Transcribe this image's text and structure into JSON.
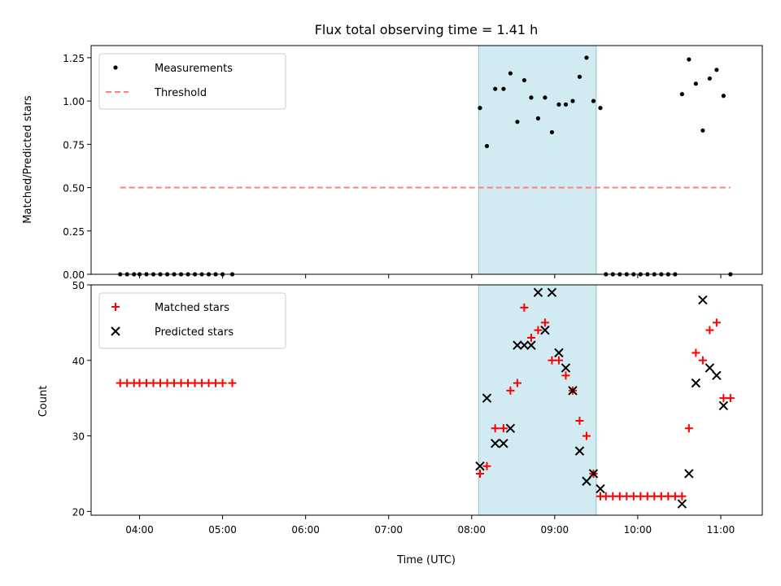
{
  "chart_data": [
    {
      "type": "scatter",
      "title": "Flux total observing time = 1.41 h",
      "xlabel": "",
      "ylabel": "Matched/Predicted stars",
      "xlim": [
        "03:25",
        "11:30"
      ],
      "ylim": [
        0,
        1.32
      ],
      "x_ticks": [
        "04:00",
        "05:00",
        "06:00",
        "07:00",
        "08:00",
        "09:00",
        "10:00",
        "11:00"
      ],
      "y_ticks": [
        "0.00",
        "0.25",
        "0.50",
        "0.75",
        "1.00",
        "1.25"
      ],
      "shaded_interval": [
        "08:05",
        "09:30"
      ],
      "shade_color": "#add8e6",
      "legend_position": "upper-left",
      "series": [
        {
          "name": "Measurements",
          "marker": "dot",
          "color": "#000000",
          "points": [
            [
              "03:46",
              0
            ],
            [
              "03:51",
              0
            ],
            [
              "03:56",
              0
            ],
            [
              "04:00",
              0
            ],
            [
              "04:05",
              0
            ],
            [
              "04:10",
              0
            ],
            [
              "04:15",
              0
            ],
            [
              "04:20",
              0
            ],
            [
              "04:25",
              0
            ],
            [
              "04:30",
              0
            ],
            [
              "04:35",
              0
            ],
            [
              "04:40",
              0
            ],
            [
              "04:45",
              0
            ],
            [
              "04:50",
              0
            ],
            [
              "04:55",
              0
            ],
            [
              "05:00",
              0
            ],
            [
              "05:07",
              0
            ],
            [
              "08:06",
              0.96
            ],
            [
              "08:11",
              0.74
            ],
            [
              "08:17",
              1.07
            ],
            [
              "08:23",
              1.07
            ],
            [
              "08:28",
              1.16
            ],
            [
              "08:33",
              0.88
            ],
            [
              "08:38",
              1.12
            ],
            [
              "08:43",
              1.02
            ],
            [
              "08:48",
              0.9
            ],
            [
              "08:53",
              1.02
            ],
            [
              "08:58",
              0.82
            ],
            [
              "09:03",
              0.98
            ],
            [
              "09:08",
              0.98
            ],
            [
              "09:13",
              1.0
            ],
            [
              "09:18",
              1.14
            ],
            [
              "09:23",
              1.25
            ],
            [
              "09:28",
              1.0
            ],
            [
              "09:33",
              0.96
            ],
            [
              "09:37",
              0
            ],
            [
              "09:42",
              0
            ],
            [
              "09:47",
              0
            ],
            [
              "09:52",
              0
            ],
            [
              "09:57",
              0
            ],
            [
              "10:02",
              0
            ],
            [
              "10:07",
              0
            ],
            [
              "10:12",
              0
            ],
            [
              "10:17",
              0
            ],
            [
              "10:22",
              0
            ],
            [
              "10:27",
              0
            ],
            [
              "10:32",
              1.04
            ],
            [
              "10:37",
              1.24
            ],
            [
              "10:42",
              1.1
            ],
            [
              "10:47",
              0.83
            ],
            [
              "10:52",
              1.13
            ],
            [
              "10:57",
              1.18
            ],
            [
              "11:02",
              1.03
            ],
            [
              "11:07",
              0
            ]
          ]
        },
        {
          "name": "Threshold",
          "line": "dashed",
          "color": "#ff7f7f",
          "points": [
            [
              "03:46",
              0.5
            ],
            [
              "11:07",
              0.5
            ]
          ]
        }
      ]
    },
    {
      "type": "scatter",
      "title": "",
      "xlabel": "Time (UTC)",
      "ylabel": "Count",
      "xlim": [
        "03:25",
        "11:30"
      ],
      "ylim": [
        19.5,
        50
      ],
      "x_ticks": [
        "04:00",
        "05:00",
        "06:00",
        "07:00",
        "08:00",
        "09:00",
        "10:00",
        "11:00"
      ],
      "y_ticks": [
        "20",
        "30",
        "40",
        "50"
      ],
      "shaded_interval": [
        "08:05",
        "09:30"
      ],
      "shade_color": "#add8e6",
      "legend_position": "upper-left",
      "series": [
        {
          "name": "Matched stars",
          "marker": "plus",
          "color": "#ff0000",
          "points": [
            [
              "03:46",
              37
            ],
            [
              "03:51",
              37
            ],
            [
              "03:56",
              37
            ],
            [
              "04:00",
              37
            ],
            [
              "04:05",
              37
            ],
            [
              "04:10",
              37
            ],
            [
              "04:15",
              37
            ],
            [
              "04:20",
              37
            ],
            [
              "04:25",
              37
            ],
            [
              "04:30",
              37
            ],
            [
              "04:35",
              37
            ],
            [
              "04:40",
              37
            ],
            [
              "04:45",
              37
            ],
            [
              "04:50",
              37
            ],
            [
              "04:55",
              37
            ],
            [
              "05:00",
              37
            ],
            [
              "05:07",
              37
            ],
            [
              "08:06",
              25
            ],
            [
              "08:11",
              26
            ],
            [
              "08:17",
              31
            ],
            [
              "08:23",
              31
            ],
            [
              "08:28",
              36
            ],
            [
              "08:33",
              37
            ],
            [
              "08:38",
              47
            ],
            [
              "08:43",
              43
            ],
            [
              "08:48",
              44
            ],
            [
              "08:53",
              45
            ],
            [
              "08:58",
              40
            ],
            [
              "09:03",
              40
            ],
            [
              "09:08",
              38
            ],
            [
              "09:13",
              36
            ],
            [
              "09:18",
              32
            ],
            [
              "09:23",
              30
            ],
            [
              "09:28",
              25
            ],
            [
              "09:33",
              22
            ],
            [
              "09:37",
              22
            ],
            [
              "09:42",
              22
            ],
            [
              "09:47",
              22
            ],
            [
              "09:52",
              22
            ],
            [
              "09:57",
              22
            ],
            [
              "10:02",
              22
            ],
            [
              "10:07",
              22
            ],
            [
              "10:12",
              22
            ],
            [
              "10:17",
              22
            ],
            [
              "10:22",
              22
            ],
            [
              "10:27",
              22
            ],
            [
              "10:32",
              22
            ],
            [
              "10:37",
              31
            ],
            [
              "10:42",
              41
            ],
            [
              "10:47",
              40
            ],
            [
              "10:52",
              44
            ],
            [
              "10:57",
              45
            ],
            [
              "11:02",
              35
            ],
            [
              "11:07",
              35
            ]
          ]
        },
        {
          "name": "Predicted stars",
          "marker": "x",
          "color": "#000000",
          "points": [
            [
              "08:06",
              26
            ],
            [
              "08:11",
              35
            ],
            [
              "08:17",
              29
            ],
            [
              "08:23",
              29
            ],
            [
              "08:28",
              31
            ],
            [
              "08:33",
              42
            ],
            [
              "08:38",
              42
            ],
            [
              "08:43",
              42
            ],
            [
              "08:48",
              49
            ],
            [
              "08:53",
              44
            ],
            [
              "08:58",
              49
            ],
            [
              "09:03",
              41
            ],
            [
              "09:08",
              39
            ],
            [
              "09:13",
              36
            ],
            [
              "09:18",
              28
            ],
            [
              "09:23",
              24
            ],
            [
              "09:28",
              25
            ],
            [
              "09:33",
              23
            ],
            [
              "10:32",
              21
            ],
            [
              "10:37",
              25
            ],
            [
              "10:42",
              37
            ],
            [
              "10:47",
              48
            ],
            [
              "10:52",
              39
            ],
            [
              "10:57",
              38
            ],
            [
              "11:02",
              34
            ]
          ]
        }
      ]
    }
  ]
}
